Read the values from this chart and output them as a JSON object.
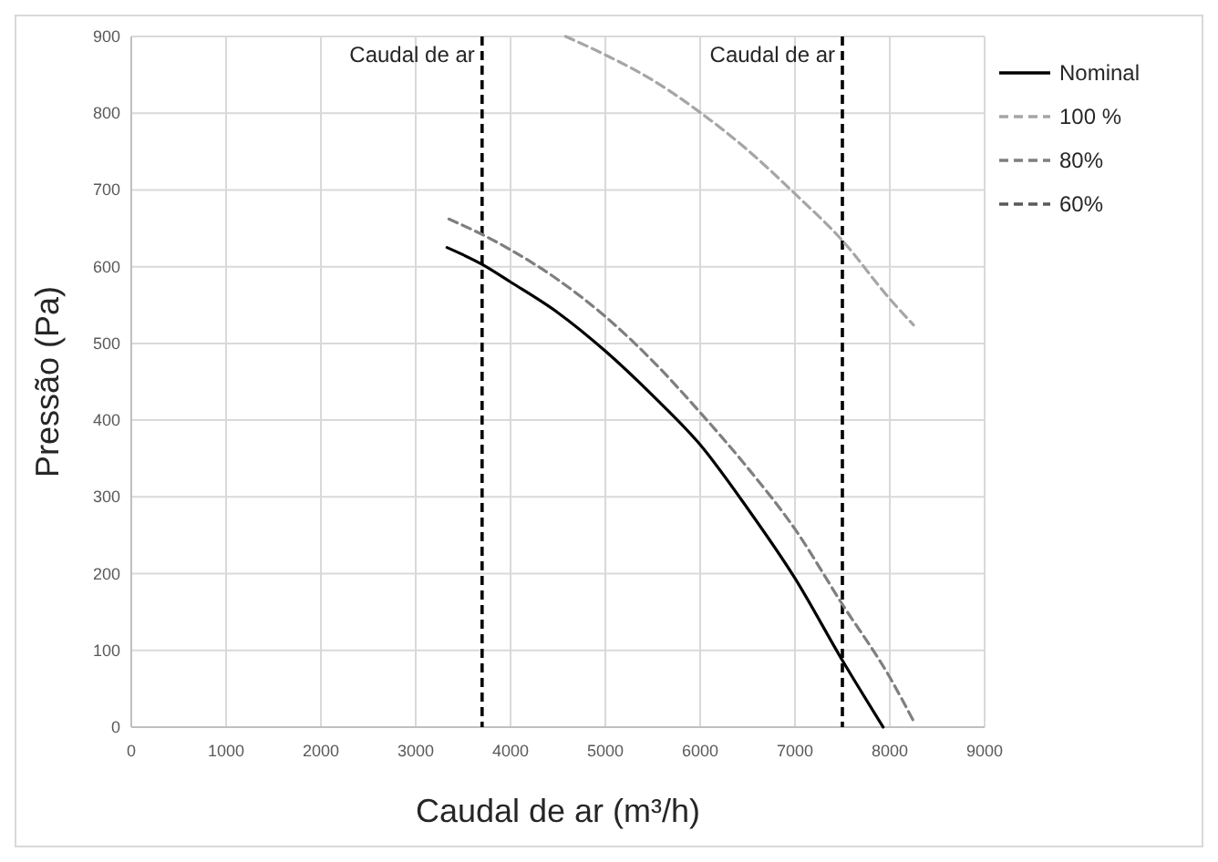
{
  "chart_data": {
    "type": "line",
    "xlabel": "Caudal de ar (m³/h)",
    "ylabel": "Pressão (Pa)",
    "xlim": [
      0,
      9000
    ],
    "xticks": [
      0,
      1000,
      2000,
      3000,
      4000,
      5000,
      6000,
      7000,
      8000,
      9000
    ],
    "ylim": [
      0,
      900
    ],
    "yticks": [
      0,
      100,
      200,
      300,
      400,
      500,
      600,
      700,
      800,
      900
    ],
    "grid": true,
    "legend": "right",
    "marker": "none",
    "ref_lines": [
      {
        "axis": "x",
        "value": 3700,
        "label": "Caudal de ar",
        "color": "#000000",
        "line_style": "dashed"
      },
      {
        "axis": "x",
        "value": 7500,
        "label": "Caudal de ar",
        "color": "#000000",
        "line_style": "dashed"
      }
    ],
    "series": [
      {
        "name": "Nominal",
        "color": "#000000",
        "line_style": "solid",
        "x": [
          3330,
          3700,
          4000,
          4500,
          5000,
          5500,
          6000,
          6500,
          7000,
          7500,
          7930
        ],
        "values": [
          625,
          603,
          580,
          540,
          490,
          432,
          368,
          285,
          194,
          87,
          0
        ]
      },
      {
        "name": "100 %",
        "color": "#a6a6a6",
        "line_style": "dashed",
        "x": [
          4580,
          5000,
          5500,
          6000,
          6500,
          7000,
          7500,
          8000,
          8250
        ],
        "values": [
          900,
          876,
          843,
          801,
          752,
          695,
          634,
          558,
          524
        ]
      },
      {
        "name": "80%",
        "color": "#7f7f7f",
        "line_style": "dashed",
        "x": [
          3350,
          3700,
          4000,
          4500,
          5000,
          5500,
          6000,
          6500,
          7000,
          7500,
          8000,
          8250
        ],
        "values": [
          662,
          642,
          622,
          583,
          535,
          477,
          410,
          338,
          258,
          160,
          65,
          8
        ]
      },
      {
        "name": "60%",
        "color": "#595959",
        "line_style": "dashed"
      }
    ]
  }
}
